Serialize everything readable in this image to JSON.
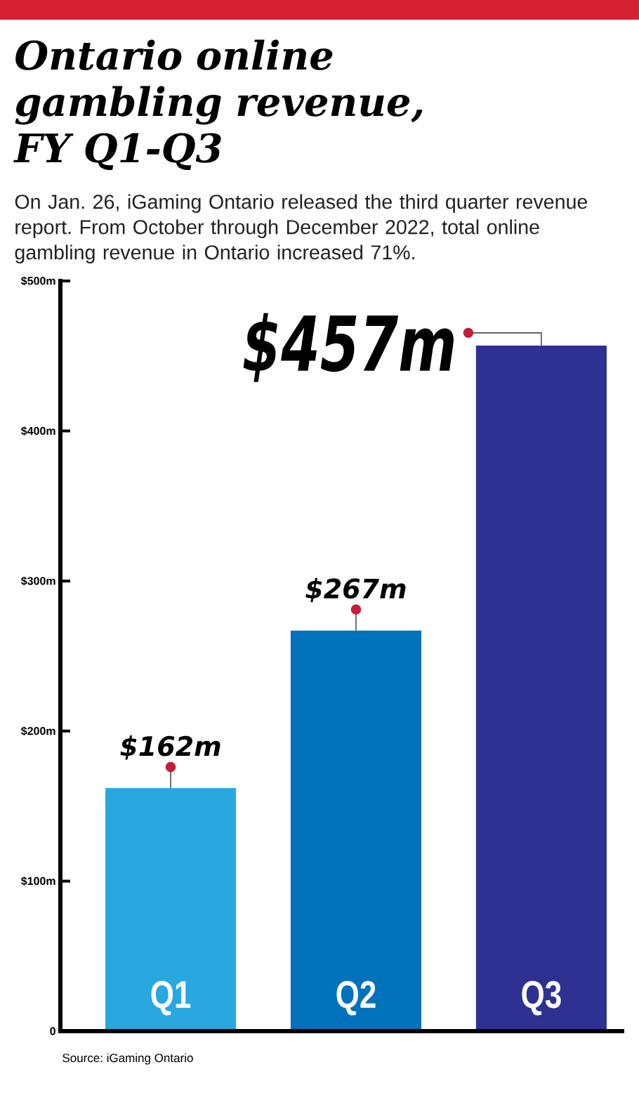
{
  "chart_data": {
    "type": "bar",
    "title": "Ontario online gambling revenue, FY Q1-Q3",
    "subtitle": "On Jan. 26, iGaming Ontario released the third quarter revenue report. From October through December 2022, total online gambling revenue in Ontario increased 71%.",
    "categories": [
      "Q1",
      "Q2",
      "Q3"
    ],
    "values": [
      162,
      267,
      457
    ],
    "colors": [
      "#29a8e0",
      "#0071bb",
      "#2e3192"
    ],
    "value_labels": [
      "$162m",
      "$267m",
      "$457m"
    ],
    "ylim": [
      0,
      500
    ],
    "yticks": [
      0,
      {
        "value": 100,
        "label": "$100m"
      },
      {
        "value": 200,
        "label": "$200m"
      },
      {
        "value": 300,
        "label": "$300m"
      },
      {
        "value": 400,
        "label": "$400m"
      },
      {
        "value": 500,
        "label": "$500m"
      }
    ],
    "annotations": [
      "Source: iGaming Ontario"
    ]
  }
}
